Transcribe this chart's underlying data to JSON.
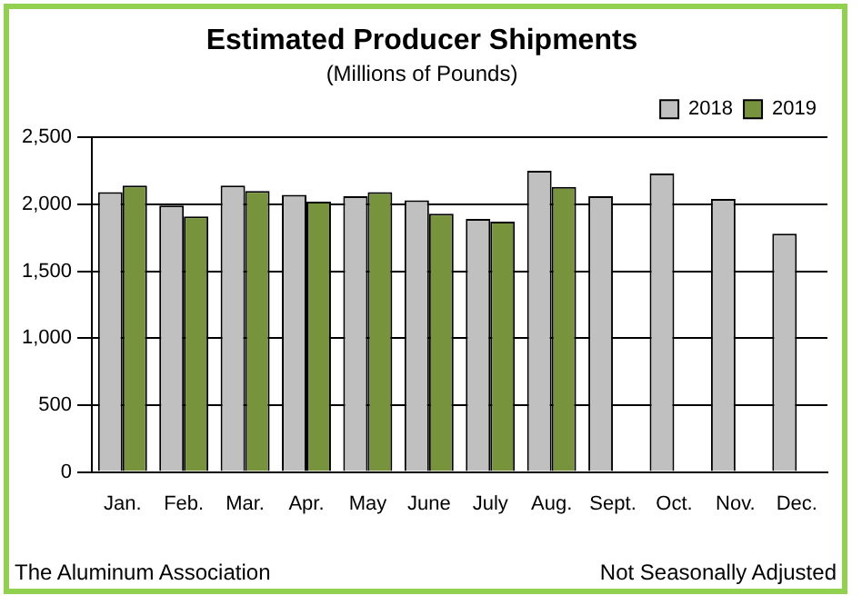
{
  "chart_data": {
    "type": "bar",
    "title": "Estimated Producer Shipments",
    "subtitle": "(Millions of Pounds)",
    "categories": [
      "Jan.",
      "Feb.",
      "Mar.",
      "Apr.",
      "May",
      "June",
      "July",
      "Aug.",
      "Sept.",
      "Oct.",
      "Nov.",
      "Dec."
    ],
    "series": [
      {
        "name": "2018",
        "color": "#c0c0c0",
        "values": [
          2090,
          1990,
          2140,
          2070,
          2060,
          2030,
          1890,
          2250,
          2060,
          2230,
          2040,
          1780
        ]
      },
      {
        "name": "2019",
        "color": "#77933c",
        "values": [
          2140,
          1910,
          2100,
          2020,
          2090,
          1930,
          1870,
          2130,
          null,
          null,
          null,
          null
        ]
      }
    ],
    "ylim": [
      0,
      2500
    ],
    "yticks": [
      {
        "value": 0,
        "label": "0"
      },
      {
        "value": 500,
        "label": "500"
      },
      {
        "value": 1000,
        "label": "1,000"
      },
      {
        "value": 1500,
        "label": "1,500"
      },
      {
        "value": 2000,
        "label": "2,000"
      },
      {
        "value": 2500,
        "label": "2,500"
      }
    ],
    "grid": "y",
    "legend": "top right",
    "annotations": [
      "The Aluminum Association",
      "Not Seasonally Adjusted"
    ]
  }
}
